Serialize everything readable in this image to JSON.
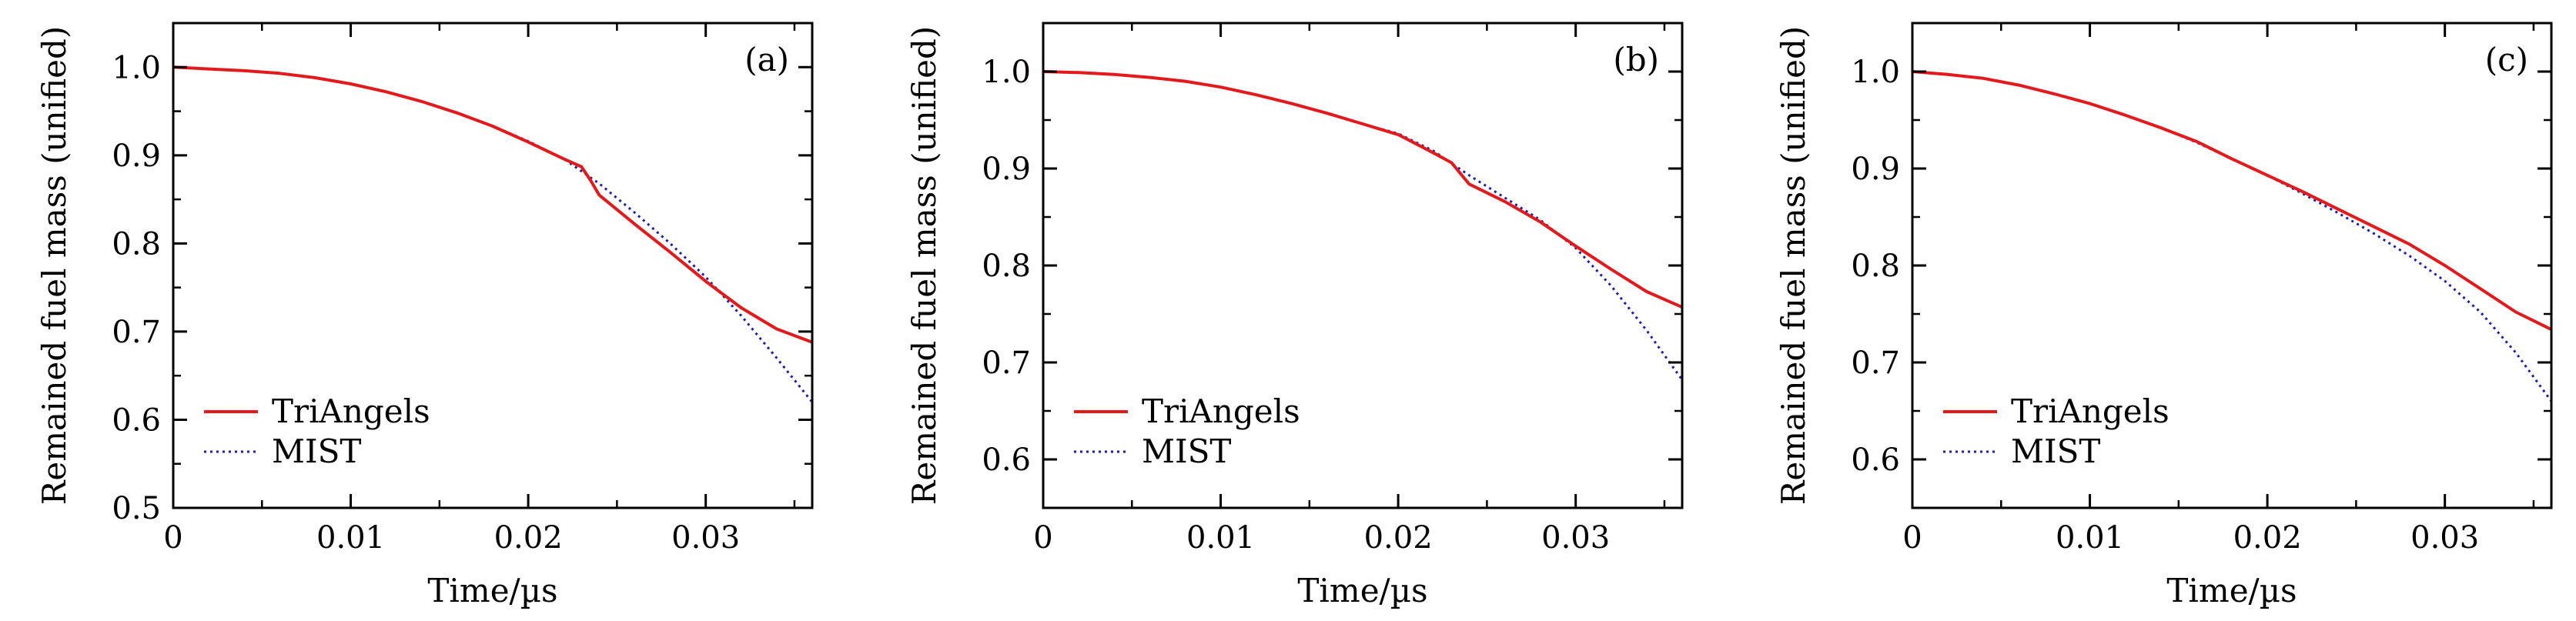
{
  "colors": {
    "triangels": "#e3191c",
    "mist": "#1c1cb4",
    "axis": "#000000"
  },
  "chart_data": [
    {
      "type": "line",
      "panel_label": "(a)",
      "xlabel": "Time/µs",
      "ylabel": "Remained fuel mass (unified)",
      "xlim": [
        0,
        0.036
      ],
      "ylim": [
        0.5,
        1.05
      ],
      "xticks": [
        0,
        0.01,
        0.02,
        0.03
      ],
      "xtick_labels": [
        "0",
        "0.01",
        "0.02",
        "0.03"
      ],
      "yticks": [
        0.5,
        0.6,
        0.7,
        0.8,
        0.9,
        1.0
      ],
      "ytick_labels": [
        "0.5",
        "0.6",
        "0.7",
        "0.8",
        "0.9",
        "1.0"
      ],
      "legend_position": "lower-left",
      "series": [
        {
          "name": "TriAngels",
          "style": "solid",
          "x": [
            0,
            0.002,
            0.004,
            0.006,
            0.008,
            0.01,
            0.012,
            0.014,
            0.016,
            0.018,
            0.02,
            0.022,
            0.023,
            0.0235,
            0.024,
            0.026,
            0.028,
            0.03,
            0.032,
            0.034,
            0.036
          ],
          "y": [
            1.0,
            0.998,
            0.996,
            0.993,
            0.988,
            0.981,
            0.972,
            0.961,
            0.948,
            0.933,
            0.915,
            0.896,
            0.887,
            0.872,
            0.855,
            0.822,
            0.79,
            0.757,
            0.727,
            0.703,
            0.688
          ]
        },
        {
          "name": "MIST",
          "style": "dotted",
          "x": [
            0,
            0.002,
            0.004,
            0.006,
            0.008,
            0.01,
            0.012,
            0.014,
            0.016,
            0.018,
            0.02,
            0.022,
            0.024,
            0.026,
            0.028,
            0.03,
            0.032,
            0.034,
            0.036
          ],
          "y": [
            1.0,
            0.998,
            0.996,
            0.993,
            0.988,
            0.981,
            0.972,
            0.961,
            0.948,
            0.933,
            0.916,
            0.896,
            0.868,
            0.835,
            0.8,
            0.762,
            0.718,
            0.67,
            0.62
          ]
        }
      ]
    },
    {
      "type": "line",
      "panel_label": "(b)",
      "xlabel": "Time/µs",
      "ylabel": "Remained fuel mass (unified)",
      "xlim": [
        0,
        0.036
      ],
      "ylim": [
        0.55,
        1.05
      ],
      "xticks": [
        0,
        0.01,
        0.02,
        0.03
      ],
      "xtick_labels": [
        "0",
        "0.01",
        "0.02",
        "0.03"
      ],
      "yticks": [
        0.6,
        0.7,
        0.8,
        0.9,
        1.0
      ],
      "ytick_labels": [
        "0.6",
        "0.7",
        "0.8",
        "0.9",
        "1.0"
      ],
      "legend_position": "lower-left",
      "series": [
        {
          "name": "TriAngels",
          "style": "solid",
          "x": [
            0,
            0.002,
            0.004,
            0.006,
            0.008,
            0.01,
            0.012,
            0.014,
            0.016,
            0.018,
            0.02,
            0.022,
            0.023,
            0.024,
            0.026,
            0.028,
            0.03,
            0.032,
            0.034,
            0.036
          ],
          "y": [
            1.0,
            0.999,
            0.997,
            0.994,
            0.99,
            0.984,
            0.976,
            0.967,
            0.957,
            0.946,
            0.935,
            0.916,
            0.906,
            0.884,
            0.866,
            0.845,
            0.82,
            0.796,
            0.773,
            0.757
          ]
        },
        {
          "name": "MIST",
          "style": "dotted",
          "x": [
            0,
            0.002,
            0.004,
            0.006,
            0.008,
            0.01,
            0.012,
            0.014,
            0.016,
            0.018,
            0.02,
            0.022,
            0.024,
            0.026,
            0.028,
            0.03,
            0.032,
            0.034,
            0.036
          ],
          "y": [
            1.0,
            0.999,
            0.997,
            0.994,
            0.99,
            0.984,
            0.976,
            0.967,
            0.957,
            0.946,
            0.936,
            0.918,
            0.893,
            0.87,
            0.847,
            0.818,
            0.779,
            0.733,
            0.682
          ]
        }
      ]
    },
    {
      "type": "line",
      "panel_label": "(c)",
      "xlabel": "Time/µs",
      "ylabel": "Remained fuel mass (unified)",
      "xlim": [
        0,
        0.036
      ],
      "ylim": [
        0.55,
        1.05
      ],
      "xticks": [
        0,
        0.01,
        0.02,
        0.03
      ],
      "xtick_labels": [
        "0",
        "0.01",
        "0.02",
        "0.03"
      ],
      "yticks": [
        0.6,
        0.7,
        0.8,
        0.9,
        1.0
      ],
      "ytick_labels": [
        "0.6",
        "0.7",
        "0.8",
        "0.9",
        "1.0"
      ],
      "legend_position": "lower-left",
      "series": [
        {
          "name": "TriAngels",
          "style": "solid",
          "x": [
            0,
            0.002,
            0.004,
            0.006,
            0.008,
            0.01,
            0.012,
            0.014,
            0.016,
            0.018,
            0.02,
            0.022,
            0.024,
            0.026,
            0.028,
            0.03,
            0.032,
            0.034,
            0.036
          ],
          "y": [
            1.0,
            0.997,
            0.993,
            0.986,
            0.977,
            0.967,
            0.955,
            0.942,
            0.928,
            0.91,
            0.893,
            0.876,
            0.858,
            0.84,
            0.822,
            0.8,
            0.776,
            0.752,
            0.734
          ]
        },
        {
          "name": "MIST",
          "style": "dotted",
          "x": [
            0,
            0.002,
            0.004,
            0.006,
            0.008,
            0.01,
            0.012,
            0.014,
            0.016,
            0.018,
            0.02,
            0.022,
            0.024,
            0.026,
            0.028,
            0.03,
            0.032,
            0.034,
            0.036
          ],
          "y": [
            1.0,
            0.997,
            0.993,
            0.986,
            0.977,
            0.967,
            0.955,
            0.942,
            0.927,
            0.91,
            0.893,
            0.874,
            0.854,
            0.833,
            0.81,
            0.784,
            0.752,
            0.71,
            0.66
          ]
        }
      ]
    }
  ]
}
